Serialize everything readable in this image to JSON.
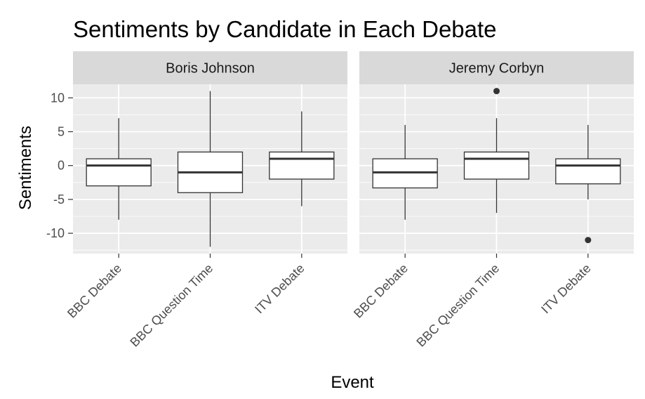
{
  "chart_data": {
    "type": "boxplot",
    "title": "Sentiments by Candidate in Each Debate",
    "xlabel": "Event",
    "ylabel": "Sentiments",
    "ylim": [
      -13,
      12
    ],
    "yticks": [
      10,
      5,
      0,
      -5,
      -10
    ],
    "grid": true,
    "categories": [
      "BBC Debate",
      "BBC Question Time",
      "ITV Debate"
    ],
    "facets": [
      {
        "name": "Boris Johnson",
        "boxes": [
          {
            "category": "BBC Debate",
            "min": -8,
            "q1": -3,
            "median": 0,
            "q3": 1,
            "max": 7,
            "outliers": []
          },
          {
            "category": "BBC Question Time",
            "min": -12,
            "q1": -4,
            "median": -1,
            "q3": 2,
            "max": 11,
            "outliers": []
          },
          {
            "category": "ITV Debate",
            "min": -6,
            "q1": -2,
            "median": 1,
            "q3": 2,
            "max": 8,
            "outliers": []
          }
        ]
      },
      {
        "name": "Jeremy Corbyn",
        "boxes": [
          {
            "category": "BBC Debate",
            "min": -8,
            "q1": -3.3,
            "median": -1,
            "q3": 1,
            "max": 6,
            "outliers": []
          },
          {
            "category": "BBC Question Time",
            "min": -7,
            "q1": -2,
            "median": 1,
            "q3": 2,
            "max": 7,
            "outliers": [
              11
            ]
          },
          {
            "category": "ITV Debate",
            "min": -5,
            "q1": -2.7,
            "median": 0,
            "q3": 1,
            "max": 6,
            "outliers": [
              -11
            ]
          }
        ]
      }
    ]
  }
}
